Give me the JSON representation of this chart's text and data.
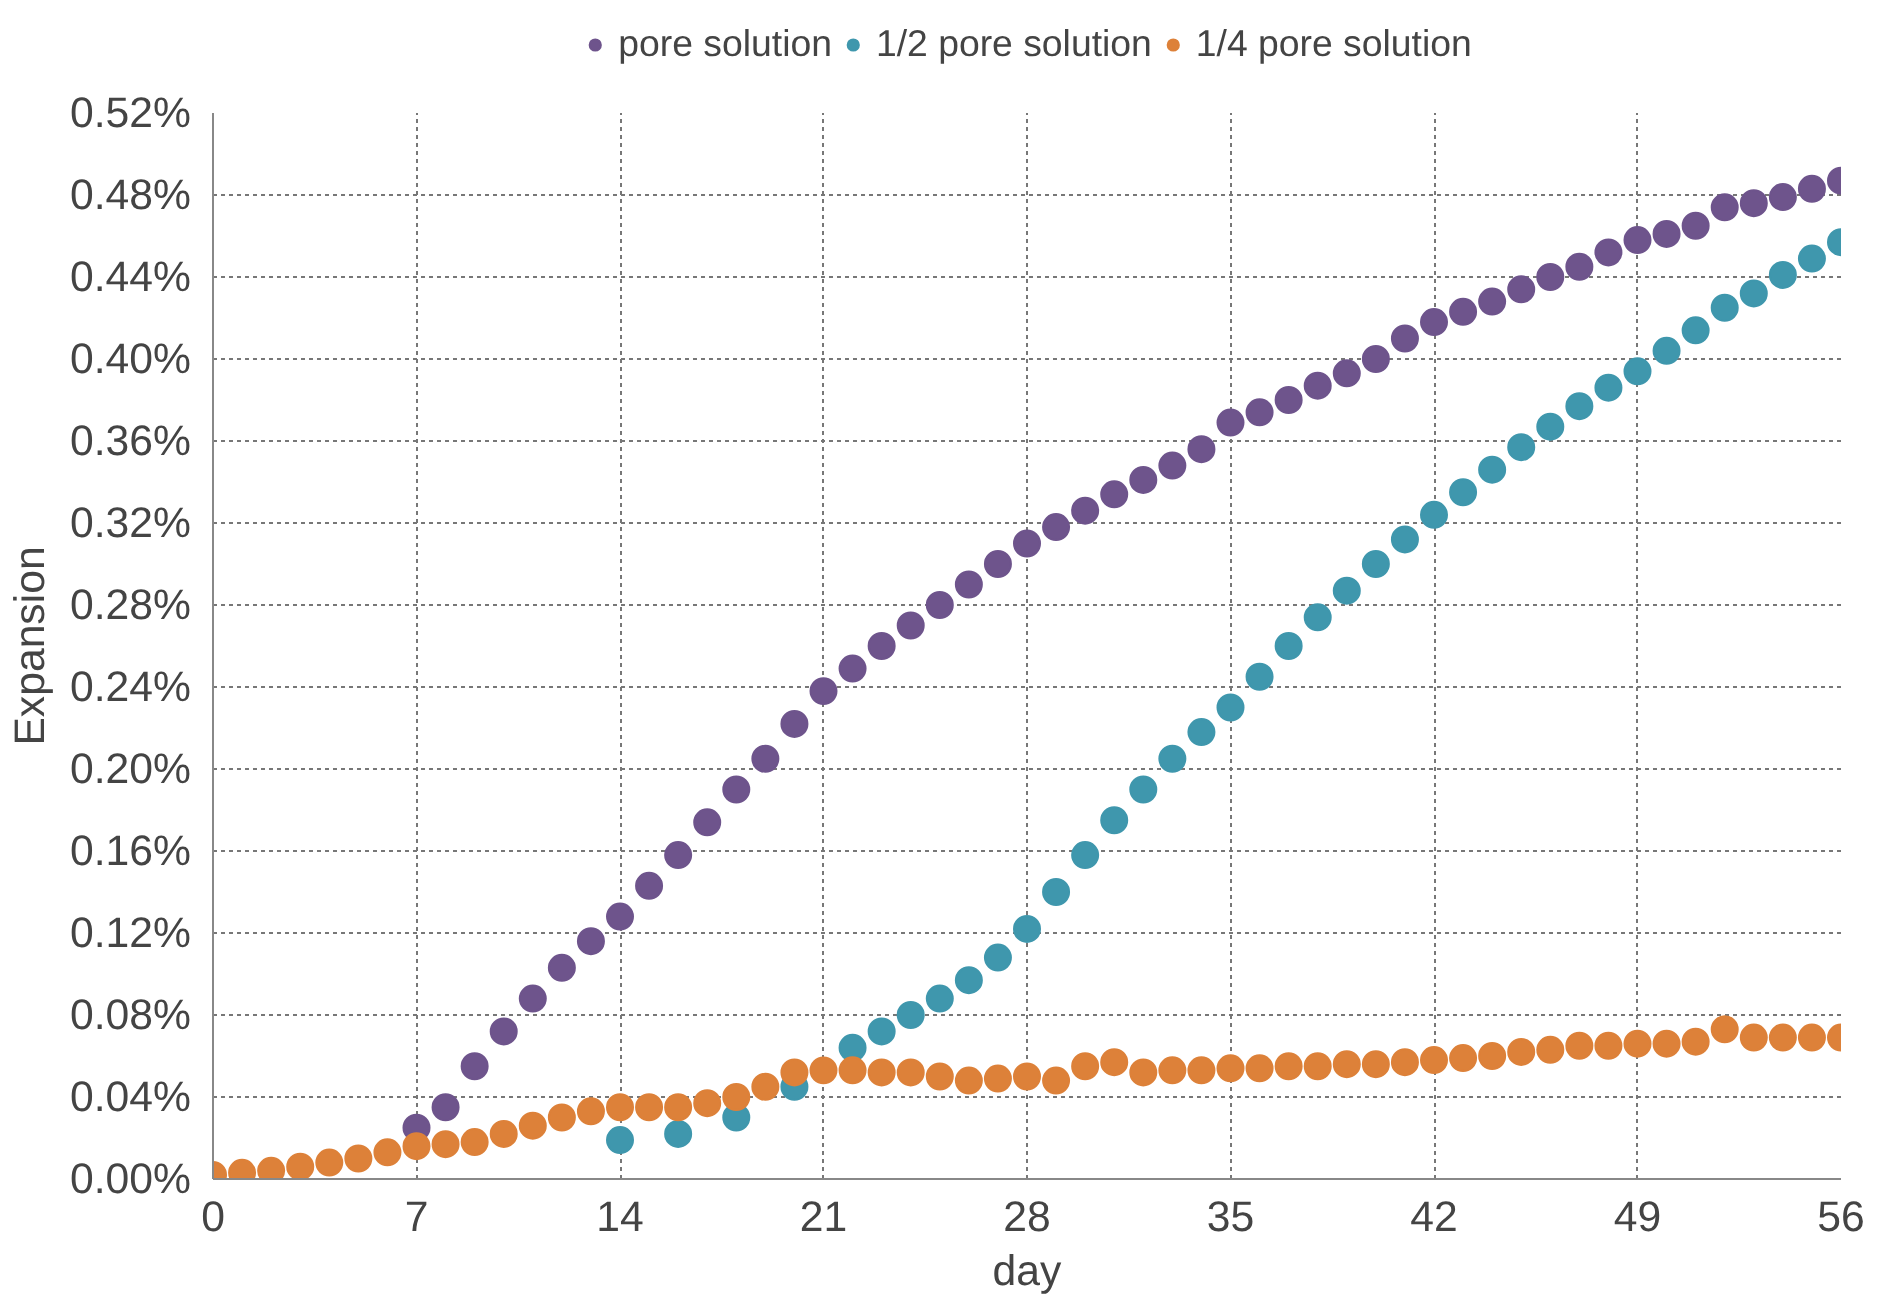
{
  "chart_data": {
    "type": "scatter",
    "xlabel": "day",
    "ylabel": "Expansion",
    "xlim": [
      0,
      56
    ],
    "xticks": [
      0,
      7,
      14,
      21,
      28,
      35,
      42,
      49,
      56
    ],
    "ylim": [
      0,
      0.52
    ],
    "yticks": [
      {
        "value": 0,
        "label": "0.00%"
      },
      {
        "value": 0.04,
        "label": "0.04%"
      },
      {
        "value": 0.08,
        "label": "0.08%"
      },
      {
        "value": 0.12,
        "label": "0.12%"
      },
      {
        "value": 0.16,
        "label": "0.16%"
      },
      {
        "value": 0.2,
        "label": "0.20%"
      },
      {
        "value": 0.24,
        "label": "0.24%"
      },
      {
        "value": 0.28,
        "label": "0.28%"
      },
      {
        "value": 0.32,
        "label": "0.32%"
      },
      {
        "value": 0.36,
        "label": "0.36%"
      },
      {
        "value": 0.4,
        "label": "0.40%"
      },
      {
        "value": 0.44,
        "label": "0.44%"
      },
      {
        "value": 0.48,
        "label": "0.48%"
      },
      {
        "value": 0.52,
        "label": "0.52%"
      }
    ],
    "grid": true,
    "legend": "top",
    "marker": "circle",
    "series": [
      {
        "name": "pore solution",
        "color": "#6e548c",
        "x": [
          7,
          8,
          9,
          10,
          11,
          12,
          13,
          14,
          15,
          16,
          17,
          18,
          19,
          20,
          21,
          22,
          23,
          24,
          25,
          26,
          27,
          28,
          29,
          30,
          31,
          32,
          33,
          34,
          35,
          36,
          37,
          38,
          39,
          40,
          41,
          42,
          43,
          44,
          45,
          46,
          47,
          48,
          49,
          50,
          51,
          52,
          53,
          54,
          55,
          56
        ],
        "values": [
          0.025,
          0.035,
          0.055,
          0.072,
          0.088,
          0.103,
          0.116,
          0.128,
          0.143,
          0.158,
          0.174,
          0.19,
          0.205,
          0.222,
          0.238,
          0.249,
          0.26,
          0.27,
          0.28,
          0.29,
          0.3,
          0.31,
          0.318,
          0.326,
          0.334,
          0.341,
          0.348,
          0.356,
          0.369,
          0.374,
          0.38,
          0.387,
          0.393,
          0.4,
          0.41,
          0.418,
          0.423,
          0.428,
          0.434,
          0.44,
          0.445,
          0.452,
          0.458,
          0.461,
          0.465,
          0.474,
          0.476,
          0.479,
          0.483,
          0.487
        ]
      },
      {
        "name": "1/2 pore solution",
        "color": "#3f97ad",
        "x": [
          14,
          16,
          18,
          20,
          22,
          23,
          24,
          25,
          26,
          27,
          28,
          29,
          30,
          31,
          32,
          33,
          34,
          35,
          36,
          37,
          38,
          39,
          40,
          41,
          42,
          43,
          44,
          45,
          46,
          47,
          48,
          49,
          50,
          51,
          52,
          53,
          54,
          55,
          56
        ],
        "values": [
          0.019,
          0.022,
          0.03,
          0.045,
          0.064,
          0.072,
          0.08,
          0.088,
          0.097,
          0.108,
          0.122,
          0.14,
          0.158,
          0.175,
          0.19,
          0.205,
          0.218,
          0.23,
          0.245,
          0.26,
          0.274,
          0.287,
          0.3,
          0.312,
          0.324,
          0.335,
          0.346,
          0.357,
          0.367,
          0.377,
          0.386,
          0.394,
          0.404,
          0.414,
          0.425,
          0.432,
          0.441,
          0.449,
          0.457
        ]
      },
      {
        "name": "1/4 pore solution",
        "color": "#dd8139",
        "x": [
          0,
          1,
          2,
          3,
          4,
          5,
          6,
          7,
          8,
          9,
          10,
          11,
          12,
          13,
          14,
          15,
          16,
          17,
          18,
          19,
          20,
          21,
          22,
          23,
          24,
          25,
          26,
          27,
          28,
          29,
          30,
          31,
          32,
          33,
          34,
          35,
          36,
          37,
          38,
          39,
          40,
          41,
          42,
          43,
          44,
          45,
          46,
          47,
          48,
          49,
          50,
          51,
          52,
          53,
          54,
          55,
          56
        ],
        "values": [
          0.002,
          0.003,
          0.004,
          0.006,
          0.008,
          0.01,
          0.013,
          0.016,
          0.017,
          0.018,
          0.022,
          0.026,
          0.03,
          0.033,
          0.035,
          0.035,
          0.035,
          0.037,
          0.04,
          0.045,
          0.052,
          0.053,
          0.053,
          0.052,
          0.052,
          0.05,
          0.048,
          0.049,
          0.05,
          0.048,
          0.055,
          0.057,
          0.052,
          0.053,
          0.053,
          0.054,
          0.054,
          0.055,
          0.055,
          0.056,
          0.056,
          0.057,
          0.058,
          0.059,
          0.06,
          0.062,
          0.063,
          0.065,
          0.065,
          0.066,
          0.066,
          0.067,
          0.073,
          0.069,
          0.069,
          0.069,
          0.069
        ]
      }
    ]
  }
}
